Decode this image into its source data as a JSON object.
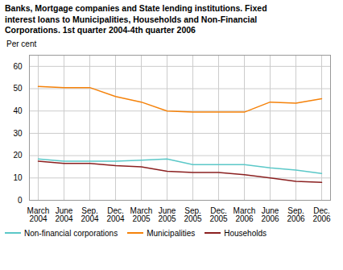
{
  "chart_data": {
    "type": "line",
    "title": "Banks, Mortgage companies and State lending institutions. Fixed\ninterest loans to Municipalities, Households and Non-Financial\nCorporations. 1st quarter 2004-4th quarter 2006",
    "y_label": "Per cent",
    "categories": [
      "March\n2004",
      "June\n2004",
      "Sep.\n2004",
      "Dec.\n2004",
      "March\n2005",
      "June\n2005",
      "Sep.\n2005",
      "Dec.\n2005",
      "March\n2006",
      "June\n2006",
      "Sep.\n2006",
      "Dec.\n2006"
    ],
    "series": [
      {
        "name": "Non-financial corporations",
        "color": "#5BC8C8",
        "values": [
          18.5,
          17.5,
          17.5,
          17.5,
          18.0,
          18.5,
          16.0,
          16.0,
          16.0,
          14.5,
          13.5,
          12.0
        ]
      },
      {
        "name": "Municipalities",
        "color": "#F5820A",
        "values": [
          51.0,
          50.5,
          50.5,
          46.5,
          44.0,
          40.0,
          39.5,
          39.5,
          39.5,
          44.0,
          43.5,
          45.5
        ]
      },
      {
        "name": "Households",
        "color": "#8B2020",
        "values": [
          17.5,
          16.5,
          16.5,
          15.5,
          15.0,
          13.0,
          12.5,
          12.5,
          11.5,
          10.0,
          8.5,
          8.0
        ]
      }
    ],
    "ylim": [
      0,
      65
    ],
    "yticks": [
      0,
      10,
      20,
      30,
      40,
      50,
      60
    ],
    "grid": true,
    "legend": "lower left"
  }
}
